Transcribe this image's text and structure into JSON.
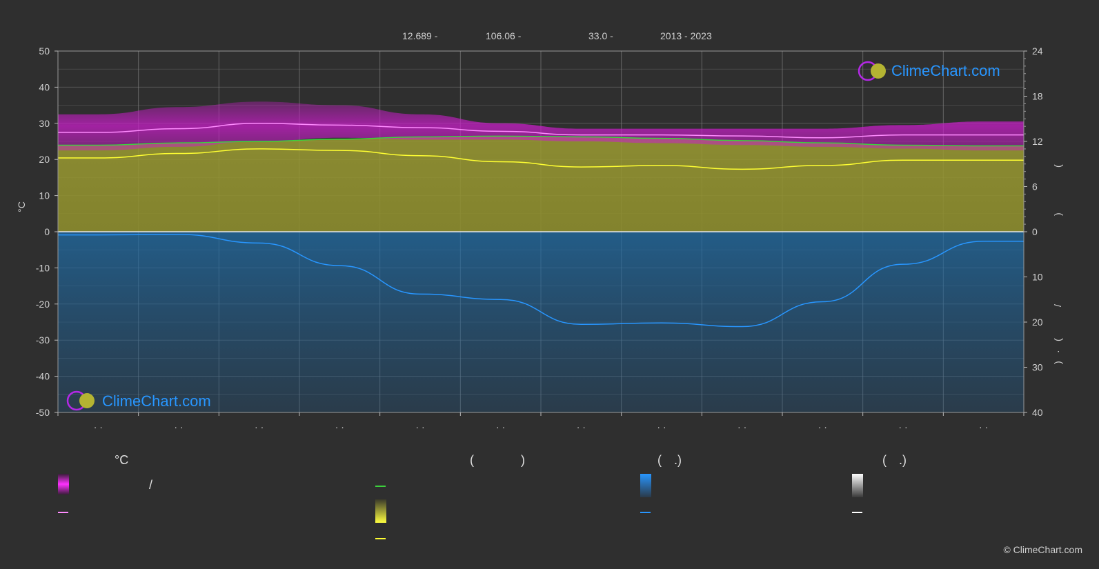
{
  "header": {
    "lat": "12.689 -",
    "lon": "106.06 -",
    "elev": "33.0 -",
    "years": "2013 - 2023"
  },
  "logo": {
    "text": "ClimeChart.com"
  },
  "left_axis": {
    "unit": "°C"
  },
  "right_axis_upper": {
    "label_a": "(",
    "label_b": ")"
  },
  "right_axis_lower": {
    "label_a": "/",
    "label_b": "(",
    "label_c": "·",
    "label_d": ")"
  },
  "legend": {
    "col1_header": "°C",
    "col1_slash": "/",
    "col2_header_open": "(",
    "col2_header_close": ")",
    "col3_header_open": "(",
    "col3_header_close": ".)",
    "col4_header_open": "(",
    "col4_header_close": ".)"
  },
  "copyright": "© ClimeChart.com",
  "colors": {
    "temp_band": "#c81ec8",
    "temp_line": "#ff8cff",
    "daylight": "#3cd23c",
    "sunshine_fill": "#9b9b32",
    "sunshine_line": "#ffff32",
    "rain_fill": "#1e6eaa",
    "rain_line": "#2896ff",
    "grid": "#6a6a6a"
  },
  "chart_data": {
    "type": "line",
    "month_tick_labels": [
      "· ·",
      "· ·",
      "· ·",
      "· ·",
      "· ·",
      "· ·",
      "· ·",
      "· ·",
      "· ·",
      "· ·",
      "· ·",
      "· ·"
    ],
    "y_left": {
      "label": "°C",
      "ticks": [
        50,
        40,
        30,
        20,
        10,
        0,
        -10,
        -20,
        -30,
        -40,
        -50
      ],
      "range": [
        -50,
        50
      ]
    },
    "y_right_upper": {
      "ticks": [
        24,
        18,
        12,
        6,
        0
      ],
      "range": [
        0,
        24
      ]
    },
    "y_right_lower": {
      "ticks": [
        0,
        10,
        20,
        30,
        40
      ],
      "range": [
        0,
        40
      ]
    },
    "grid": true,
    "x_months": [
      0.5,
      1.5,
      2.5,
      3.5,
      4.5,
      5.5,
      6.5,
      7.5,
      8.5,
      9.5,
      10.5,
      11.5
    ],
    "series": [
      {
        "values": [
          27.5,
          28.5,
          30.0,
          29.5,
          28.8,
          27.8,
          26.8,
          26.8,
          26.5,
          26.0,
          26.8,
          26.8
        ]
      },
      {
        "values": [
          32.5,
          34.5,
          36.0,
          35.0,
          32.5,
          30.0,
          28.5,
          28.5,
          28.5,
          28.5,
          29.5,
          30.5
        ]
      },
      {
        "values": [
          22.5,
          23.5,
          25.0,
          26.0,
          25.5,
          25.5,
          25.0,
          24.5,
          24.0,
          23.5,
          23.0,
          22.5
        ]
      },
      {
        "values": [
          11.5,
          11.8,
          12.0,
          12.3,
          12.6,
          12.7,
          12.6,
          12.4,
          12.1,
          11.8,
          11.5,
          11.4
        ]
      },
      {
        "values": [
          9.8,
          10.4,
          11.0,
          10.8,
          10.1,
          9.3,
          8.6,
          8.8,
          8.3,
          8.8,
          9.5,
          9.5
        ]
      },
      {
        "values": [
          0.7,
          0.6,
          2.5,
          7.5,
          13.8,
          15.0,
          20.5,
          20.2,
          21.0,
          15.5,
          7.2,
          2.1
        ]
      }
    ]
  }
}
